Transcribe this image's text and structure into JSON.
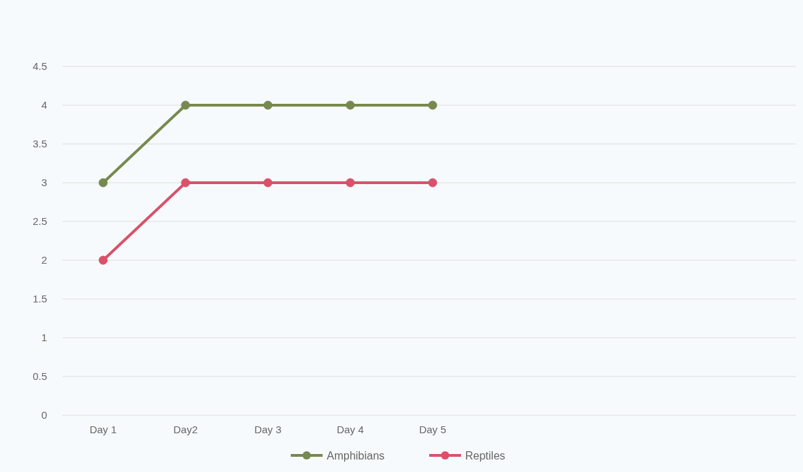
{
  "chart_data": {
    "type": "line",
    "categories": [
      "Day 1",
      "Day2",
      "Day 3",
      "Day 4",
      "Day 5"
    ],
    "series": [
      {
        "name": "Amphibians",
        "color": "#76894f",
        "values": [
          3,
          4,
          4,
          4,
          4
        ]
      },
      {
        "name": "Reptiles",
        "color": "#d9526a",
        "values": [
          2,
          3,
          3,
          3,
          3
        ]
      }
    ],
    "ylim": [
      0,
      4.5
    ],
    "yticks": [
      0,
      0.5,
      1,
      1.5,
      2,
      2.5,
      3,
      3.5,
      4,
      4.5
    ],
    "grid": "y",
    "legend": "bottom",
    "marker": "circle",
    "line_style": "solid"
  }
}
